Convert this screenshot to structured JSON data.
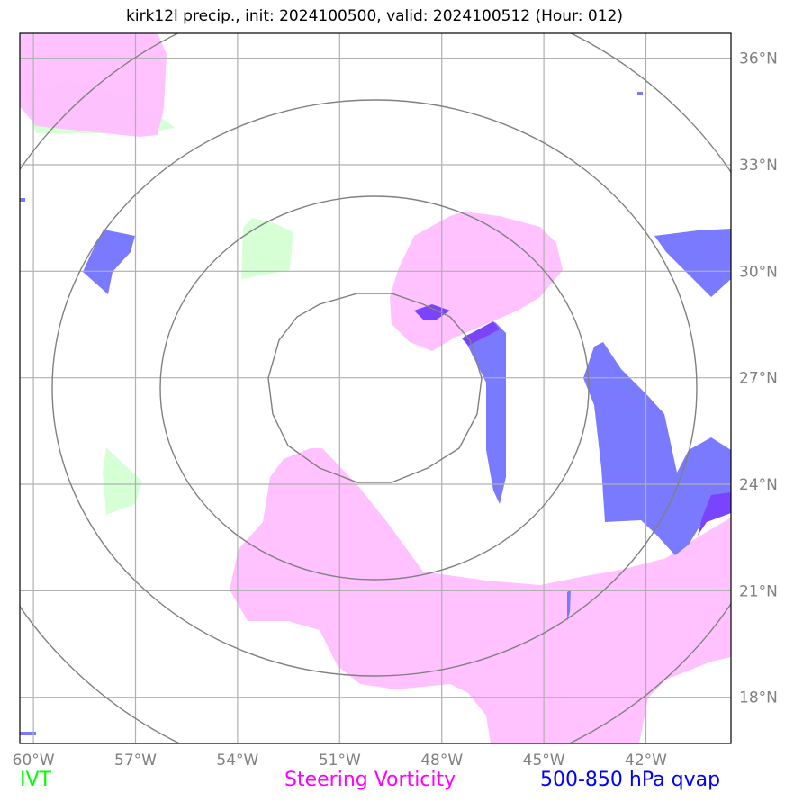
{
  "title": "kirk12l precip., init: 2024100500, valid: 2024100512 (Hour: 012)",
  "map": {
    "lon_range": [
      -60.4,
      -39.5
    ],
    "lat_range": [
      16.7,
      36.7
    ],
    "lon_ticks": [
      {
        "value": -60,
        "label": "60°W"
      },
      {
        "value": -57,
        "label": "57°W"
      },
      {
        "value": -54,
        "label": "54°W"
      },
      {
        "value": -51,
        "label": "51°W"
      },
      {
        "value": -48,
        "label": "48°W"
      },
      {
        "value": -45,
        "label": "45°W"
      },
      {
        "value": -42,
        "label": "42°W"
      }
    ],
    "lat_ticks": [
      {
        "value": 36,
        "label": "36°N"
      },
      {
        "value": 33,
        "label": "33°N"
      },
      {
        "value": 30,
        "label": "30°N"
      },
      {
        "value": 27,
        "label": "27°N"
      },
      {
        "value": 24,
        "label": "24°N"
      },
      {
        "value": 21,
        "label": "21°N"
      },
      {
        "value": 18,
        "label": "18°N"
      }
    ],
    "range_rings_center": {
      "lon": -51.0,
      "lat": 27.0
    },
    "gridline_color": "#b0b0b0",
    "ring_color": "#808080"
  },
  "legend": {
    "ivt": {
      "label": "IVT",
      "color": "#00ff00"
    },
    "vorticity": {
      "label": "Steering Vorticity",
      "color": "#ff00ff"
    },
    "qvap": {
      "label": "500-850 hPa qvap",
      "color": "#0000ff"
    }
  },
  "fields": {
    "ivt_color": "#ccffcc",
    "vorticity_color": "#ffbfff",
    "qvap_color": "#7a7aff",
    "overlap_color": "#7a44ff"
  }
}
